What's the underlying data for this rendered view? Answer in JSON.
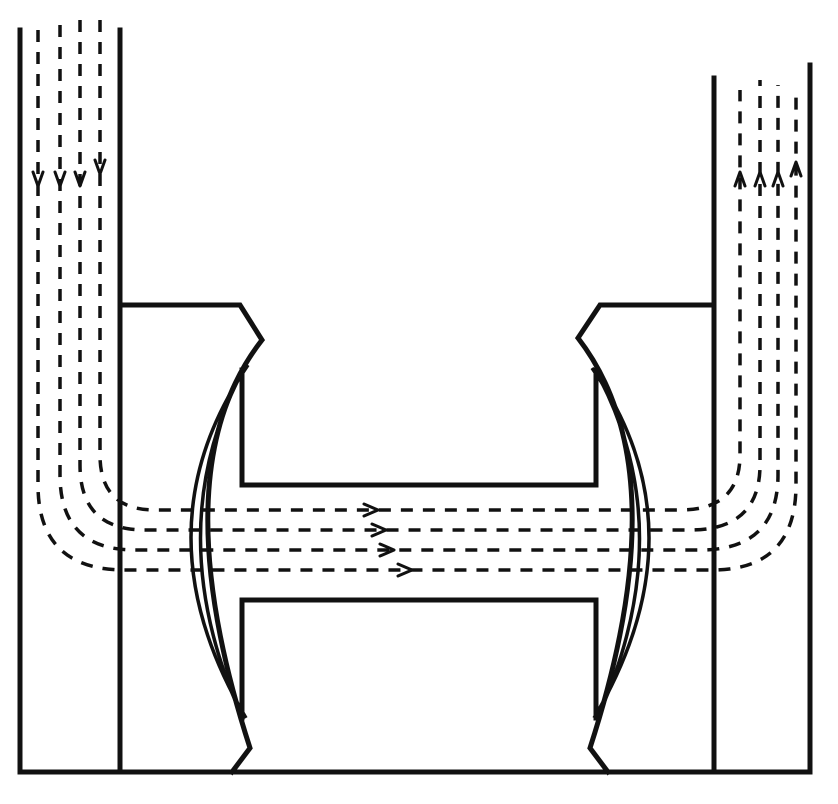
{
  "diagram": {
    "colors": {
      "ink": "#111111",
      "paper": "#ffffff"
    },
    "components": {
      "left_pole": "vertical-limb",
      "right_pole": "vertical-limb",
      "left_pole_shoe": "curved-shoe",
      "right_pole_shoe": "curved-shoe",
      "armature": "h-shaped-armature"
    },
    "flux_direction": {
      "left_limb": "down",
      "gap": "right",
      "right_limb": "up"
    },
    "flux_line_count": 4
  }
}
